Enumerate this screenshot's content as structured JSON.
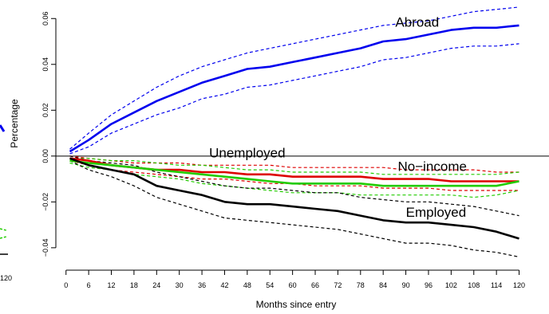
{
  "chart_data": {
    "type": "line",
    "xlabel": "Months since entry",
    "ylabel": "Percentage",
    "xlim": [
      -1,
      122
    ],
    "ylim": [
      -0.047,
      0.066
    ],
    "xticks": [
      0,
      6,
      12,
      18,
      24,
      30,
      36,
      42,
      48,
      54,
      60,
      66,
      72,
      78,
      84,
      90,
      96,
      102,
      108,
      114,
      120
    ],
    "yticks": [
      -0.04,
      -0.02,
      0.0,
      0.02,
      0.04,
      0.06
    ],
    "ytick_labels": [
      "−0.04",
      "−0.02",
      "0.00",
      "0.02",
      "0.04",
      "0.06"
    ],
    "zero_line": 0,
    "grid": false,
    "legend": "none",
    "left_panel_fragment": {
      "tick_label": "120"
    },
    "series": [
      {
        "name": "Abroad",
        "color": "#0000ee",
        "x": [
          1,
          6,
          12,
          18,
          24,
          30,
          36,
          42,
          48,
          54,
          60,
          66,
          72,
          78,
          84,
          90,
          96,
          102,
          108,
          114,
          120
        ],
        "y": [
          0.002,
          0.007,
          0.014,
          0.019,
          0.024,
          0.028,
          0.032,
          0.035,
          0.038,
          0.039,
          0.041,
          0.043,
          0.045,
          0.047,
          0.05,
          0.051,
          0.053,
          0.055,
          0.056,
          0.056,
          0.057
        ],
        "upper": [
          0.003,
          0.01,
          0.018,
          0.024,
          0.03,
          0.035,
          0.039,
          0.042,
          0.045,
          0.047,
          0.049,
          0.051,
          0.053,
          0.055,
          0.057,
          0.058,
          0.059,
          0.061,
          0.063,
          0.064,
          0.065
        ],
        "lower": [
          0.001,
          0.004,
          0.01,
          0.014,
          0.018,
          0.021,
          0.025,
          0.027,
          0.03,
          0.031,
          0.033,
          0.035,
          0.037,
          0.039,
          0.042,
          0.043,
          0.045,
          0.047,
          0.048,
          0.048,
          0.049
        ]
      },
      {
        "name": "Unemployed",
        "color": "#dd0000",
        "x": [
          1,
          6,
          12,
          18,
          24,
          30,
          36,
          42,
          48,
          54,
          60,
          66,
          72,
          78,
          84,
          90,
          96,
          102,
          108,
          114,
          120
        ],
        "y": [
          -0.001,
          -0.002,
          -0.004,
          -0.005,
          -0.006,
          -0.006,
          -0.007,
          -0.007,
          -0.008,
          -0.008,
          -0.009,
          -0.009,
          -0.009,
          -0.009,
          -0.01,
          -0.01,
          -0.01,
          -0.011,
          -0.011,
          -0.011,
          -0.011
        ],
        "upper": [
          0.0,
          -0.001,
          -0.002,
          -0.003,
          -0.003,
          -0.003,
          -0.004,
          -0.004,
          -0.004,
          -0.004,
          -0.005,
          -0.005,
          -0.005,
          -0.005,
          -0.005,
          -0.006,
          -0.006,
          -0.006,
          -0.006,
          -0.007,
          -0.007
        ],
        "lower": [
          -0.002,
          -0.004,
          -0.006,
          -0.007,
          -0.008,
          -0.009,
          -0.01,
          -0.01,
          -0.011,
          -0.012,
          -0.012,
          -0.013,
          -0.013,
          -0.013,
          -0.014,
          -0.014,
          -0.014,
          -0.015,
          -0.015,
          -0.015,
          -0.015
        ]
      },
      {
        "name": "No−income",
        "color": "#22cc00",
        "x": [
          1,
          6,
          12,
          18,
          24,
          30,
          36,
          42,
          48,
          54,
          60,
          66,
          72,
          78,
          84,
          90,
          96,
          102,
          108,
          114,
          120
        ],
        "y": [
          -0.002,
          -0.003,
          -0.004,
          -0.005,
          -0.006,
          -0.007,
          -0.008,
          -0.009,
          -0.01,
          -0.011,
          -0.012,
          -0.012,
          -0.012,
          -0.012,
          -0.013,
          -0.013,
          -0.013,
          -0.013,
          -0.013,
          -0.013,
          -0.011
        ],
        "upper": [
          -0.001,
          -0.001,
          -0.002,
          -0.002,
          -0.003,
          -0.004,
          -0.004,
          -0.005,
          -0.006,
          -0.006,
          -0.007,
          -0.007,
          -0.007,
          -0.007,
          -0.008,
          -0.008,
          -0.008,
          -0.008,
          -0.008,
          -0.008,
          -0.007
        ],
        "lower": [
          -0.003,
          -0.005,
          -0.006,
          -0.008,
          -0.009,
          -0.01,
          -0.012,
          -0.013,
          -0.014,
          -0.015,
          -0.016,
          -0.016,
          -0.016,
          -0.017,
          -0.017,
          -0.017,
          -0.017,
          -0.017,
          -0.018,
          -0.017,
          -0.015
        ]
      },
      {
        "name": "Employed",
        "color": "#000000",
        "x": [
          1,
          6,
          12,
          18,
          24,
          30,
          36,
          42,
          48,
          54,
          60,
          66,
          72,
          78,
          84,
          90,
          96,
          102,
          108,
          114,
          120
        ],
        "y": [
          -0.001,
          -0.004,
          -0.006,
          -0.008,
          -0.013,
          -0.015,
          -0.017,
          -0.02,
          -0.021,
          -0.021,
          -0.022,
          -0.023,
          -0.024,
          -0.026,
          -0.028,
          -0.029,
          -0.029,
          -0.03,
          -0.031,
          -0.033,
          -0.036
        ],
        "upper": [
          0.0,
          -0.002,
          -0.003,
          -0.004,
          -0.007,
          -0.009,
          -0.011,
          -0.013,
          -0.014,
          -0.014,
          -0.015,
          -0.016,
          -0.016,
          -0.018,
          -0.019,
          -0.02,
          -0.02,
          -0.021,
          -0.022,
          -0.024,
          -0.026
        ],
        "lower": [
          -0.002,
          -0.006,
          -0.009,
          -0.013,
          -0.018,
          -0.021,
          -0.024,
          -0.027,
          -0.028,
          -0.029,
          -0.03,
          -0.031,
          -0.032,
          -0.034,
          -0.036,
          -0.038,
          -0.038,
          -0.039,
          -0.041,
          -0.042,
          -0.044
        ]
      }
    ],
    "annotations": [
      {
        "text": "Abroad",
        "x": 93,
        "y": 0.0565,
        "color": "#000000"
      },
      {
        "text": "Unemployed",
        "x": 48,
        "y": -0.0005,
        "color": "#000000"
      },
      {
        "text": "No−income",
        "x": 97,
        "y": -0.0065,
        "color": "#000000"
      },
      {
        "text": "Employed",
        "x": 98,
        "y": -0.0265,
        "color": "#000000"
      }
    ]
  }
}
